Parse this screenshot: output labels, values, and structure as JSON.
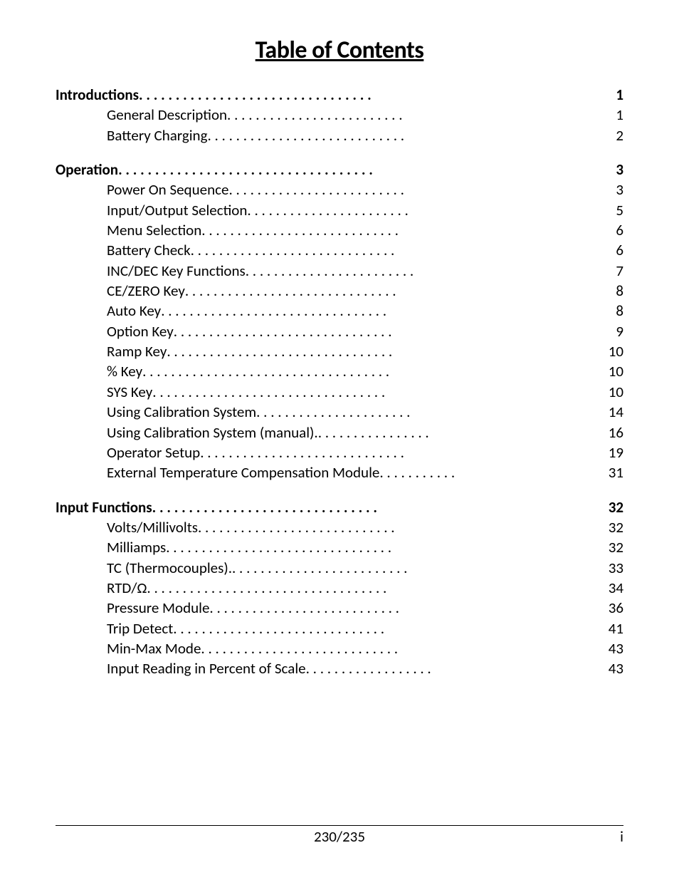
{
  "title": "Table of Contents",
  "sections": [
    {
      "head": {
        "label": "Introductions",
        "dots": " . . . . . . . . . . . . . . . . . . . . . . . . . . . . . . . .  ",
        "page": "1"
      },
      "subs": [
        {
          "label": "General Description",
          "dots": " . . . . . . . . . . . . . . . . . . . . . . . . .  ",
          "page": "1"
        },
        {
          "label": "Battery Charging ",
          "dots": " . . . . . . . . . . . . . . . . . . . . . . . . . . . . ",
          "page": "2"
        }
      ]
    },
    {
      "head": {
        "label": "Operation",
        "dots": " . . . . . . . . . . . . . . . . . . . . . . . . . . . . . . . . . . .",
        "page": "3"
      },
      "subs": [
        {
          "label": "Power On Sequence",
          "dots": " . . . . . . . . . . . . . . . . . . . . . . . . .  ",
          "page": "3"
        },
        {
          "label": "Input/Output Selection ",
          "dots": " . . . . . . . . . . . . . . . . . . . . . . . ",
          "page": "5"
        },
        {
          "label": "Menu Selection",
          "dots": " . . . . . . . . . . . . . . . . . . . . . . . . . . . .  ",
          "page": "6"
        },
        {
          "label": "Battery Check",
          "dots": " . . . . . . . . . . . . . . . . . . . . . . . . . . . . .  ",
          "page": "6"
        },
        {
          "label": "INC/DEC Key Functions",
          "dots": " . . . . . . . . . . . . . . . . . . . . . . . .",
          "page": "7"
        },
        {
          "label": "CE/ZERO Key",
          "dots": " . . . . . . . . . . . . . . . . . . . . . . . . . . . . . .  ",
          "page": "8"
        },
        {
          "label": "Auto Key ",
          "dots": " . . . . . . . . . . . . . . . . . . . . . . . . . . . . . . . .  ",
          "page": "8"
        },
        {
          "label": "Option Key ",
          "dots": " . . . . . . . . . . . . . . . . . . . . . . . . . . . . . . . ",
          "page": "9"
        },
        {
          "label": "Ramp Key",
          "dots": " . . . . . . . . . . . . . . . . . . . . . . . . . . . . . . . . ",
          "page": "10"
        },
        {
          "label": "% Key",
          "dots": " . . . . . . . . . . . . . . . . . . . . . . . . . . . . . . . . . . . ",
          "page": "10"
        },
        {
          "label": "SYS Key",
          "dots": " . . . . . . . . . . . . . . . . . . . . . . . . . . . . . . . . . ",
          "page": "10"
        },
        {
          "label": "Using Calibration System",
          "dots": " . . . . . . . . . . . . . . . . . . . . . . ",
          "page": "14"
        },
        {
          "label": "Using Calibration System (manual).",
          "dots": " . . . . . . . . . . . . . . . .  ",
          "page": "16"
        },
        {
          "label": "Operator Setup",
          "dots": " . . . . . . . . . . . . . . . . . . . . . . . . . . . . .",
          "page": "19"
        },
        {
          "label": "External Temperature Compensation Module",
          "dots": " . . . . . . . . . . .",
          "page": "31"
        }
      ]
    },
    {
      "head": {
        "label": "Input Functions",
        "dots": " . . . . . . . . . . . . . . . . . . . . . . . . . . . . . . . ",
        "page": "32"
      },
      "subs": [
        {
          "label": "Volts/Millivolts ",
          "dots": " . . . . . . . . . . . . . . . . . . . . . . . . . . . . ",
          "page": "32"
        },
        {
          "label": "Milliamps ",
          "dots": " . . . . . . . . . . . . . . . . . . . . . . . . . . . . . . . . ",
          "page": "32"
        },
        {
          "label": "TC (Thermocouples).",
          "dots": " . . . . . . . . . . . . . . . . . . . . . . . . . ",
          "page": "33"
        },
        {
          "label": "RTD/Ω",
          "dots": " . . . . . . . . . . . . . . . . . . . . . . . . . . . . . . . . . .  ",
          "page": "34"
        },
        {
          "label": "Pressure Module",
          "dots": " . . . . . . . . . . . . . . . . . . . . . . . . . . .   ",
          "page": "36"
        },
        {
          "label": "Trip Detect",
          "dots": " . . . . . . . . . . . . . . . . . . . . . . . . . . . . . .   ",
          "page": "41"
        },
        {
          "label": "Min-Max Mode",
          "dots": " . . . . . . . . . . . . . . . . . . . . . . . . . . . .  ",
          "page": "43"
        },
        {
          "label": "Input Reading in Percent of Scale",
          "dots": " . . . . . . . . . . . . . . . . . . ",
          "page": "43"
        }
      ]
    }
  ],
  "footer": {
    "center": "230/235",
    "right": "i"
  },
  "colors": {
    "text": "#000000",
    "bg": "#ffffff",
    "rule": "#000000"
  },
  "fonts": {
    "title_size": 34,
    "body_size": 21,
    "family": "Calibri"
  }
}
